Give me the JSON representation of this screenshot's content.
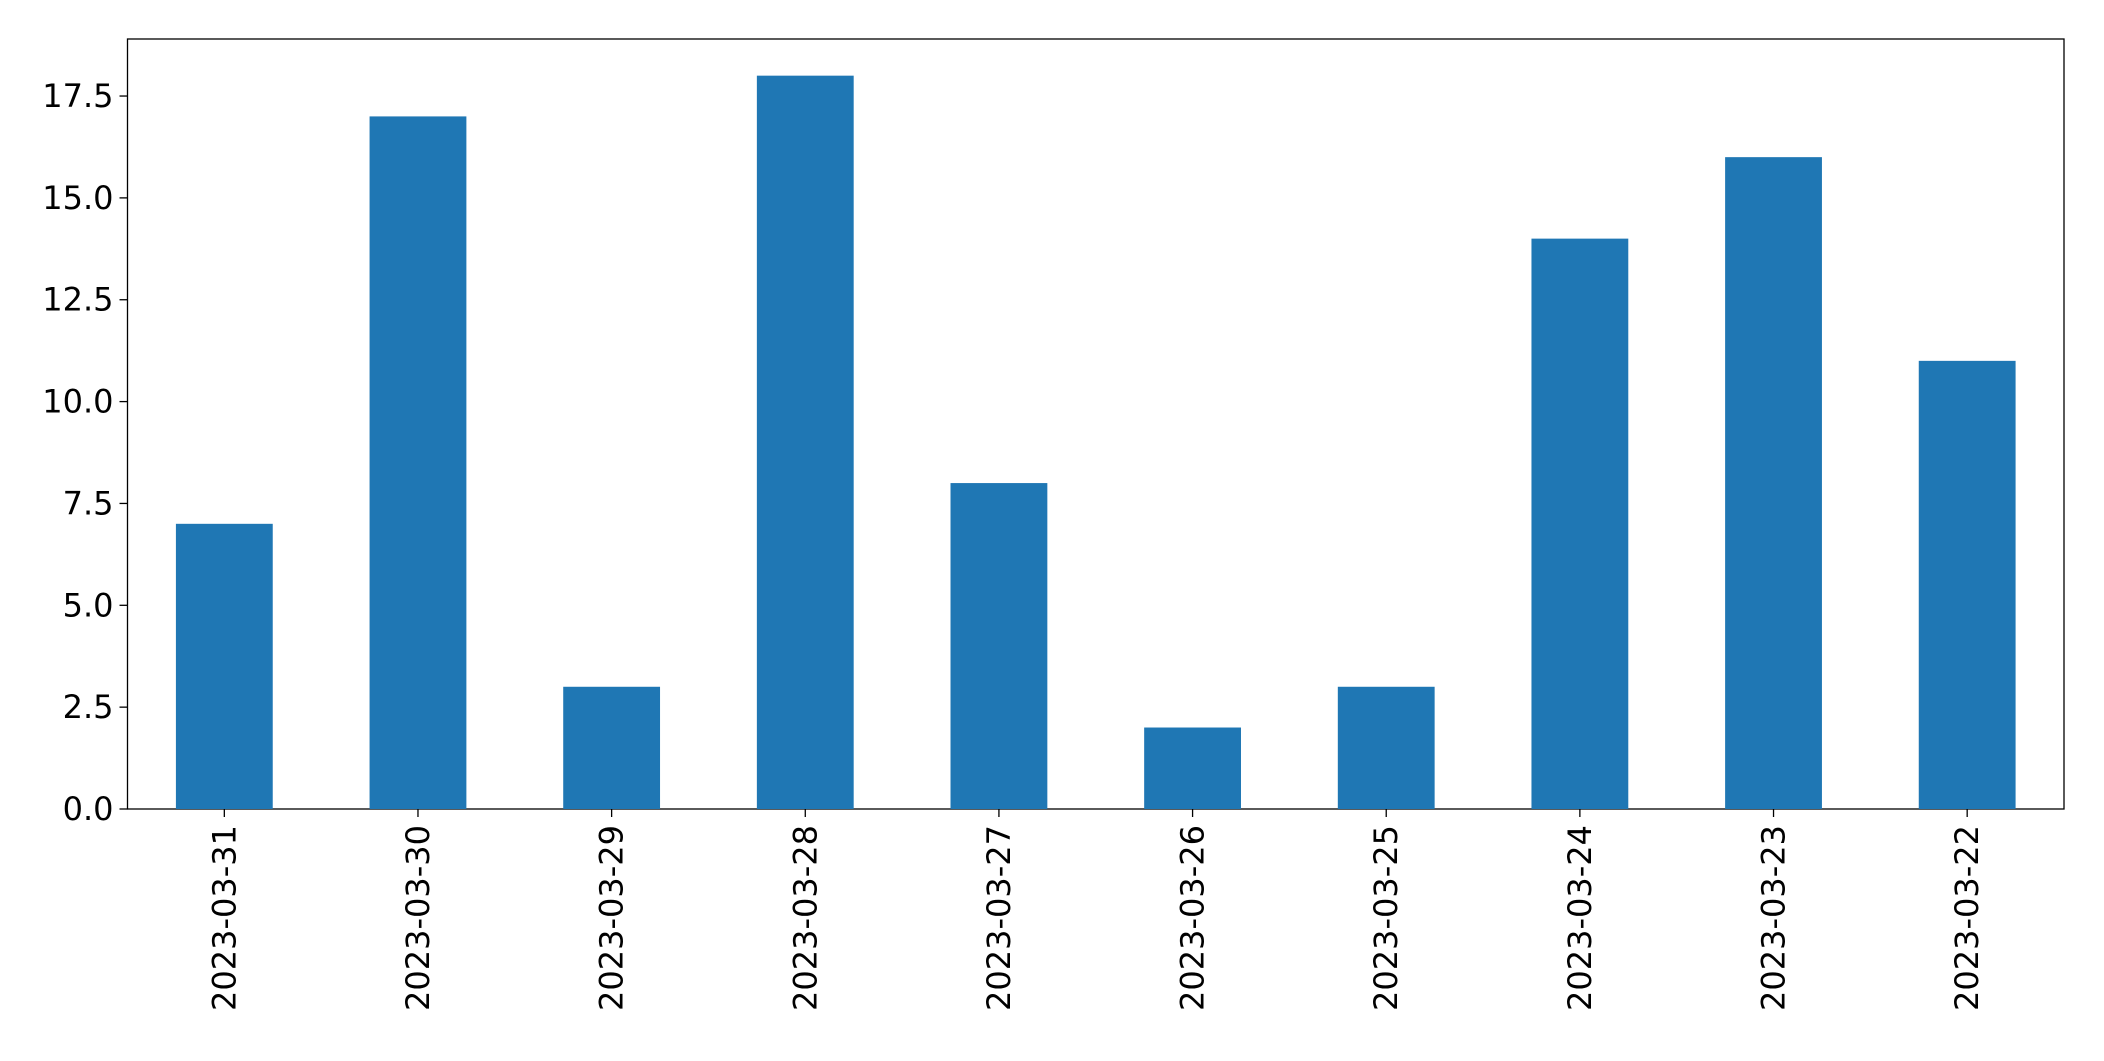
{
  "chart_data": {
    "type": "bar",
    "categories": [
      "2023-03-31",
      "2023-03-30",
      "2023-03-29",
      "2023-03-28",
      "2023-03-27",
      "2023-03-26",
      "2023-03-25",
      "2023-03-24",
      "2023-03-23",
      "2023-03-22"
    ],
    "values": [
      7,
      17,
      3,
      18,
      8,
      2,
      3,
      14,
      16,
      11
    ],
    "color": "#1f77b4",
    "ylim": [
      0,
      18.9
    ],
    "yticks": [
      {
        "value": 0,
        "label": "0.0"
      },
      2.5,
      {
        "value": 5,
        "label": "5.0"
      },
      7.5,
      {
        "value": 10,
        "label": "10.0"
      },
      12.5,
      {
        "value": 15,
        "label": "15.0"
      },
      17.5
    ],
    "grid": false
  }
}
